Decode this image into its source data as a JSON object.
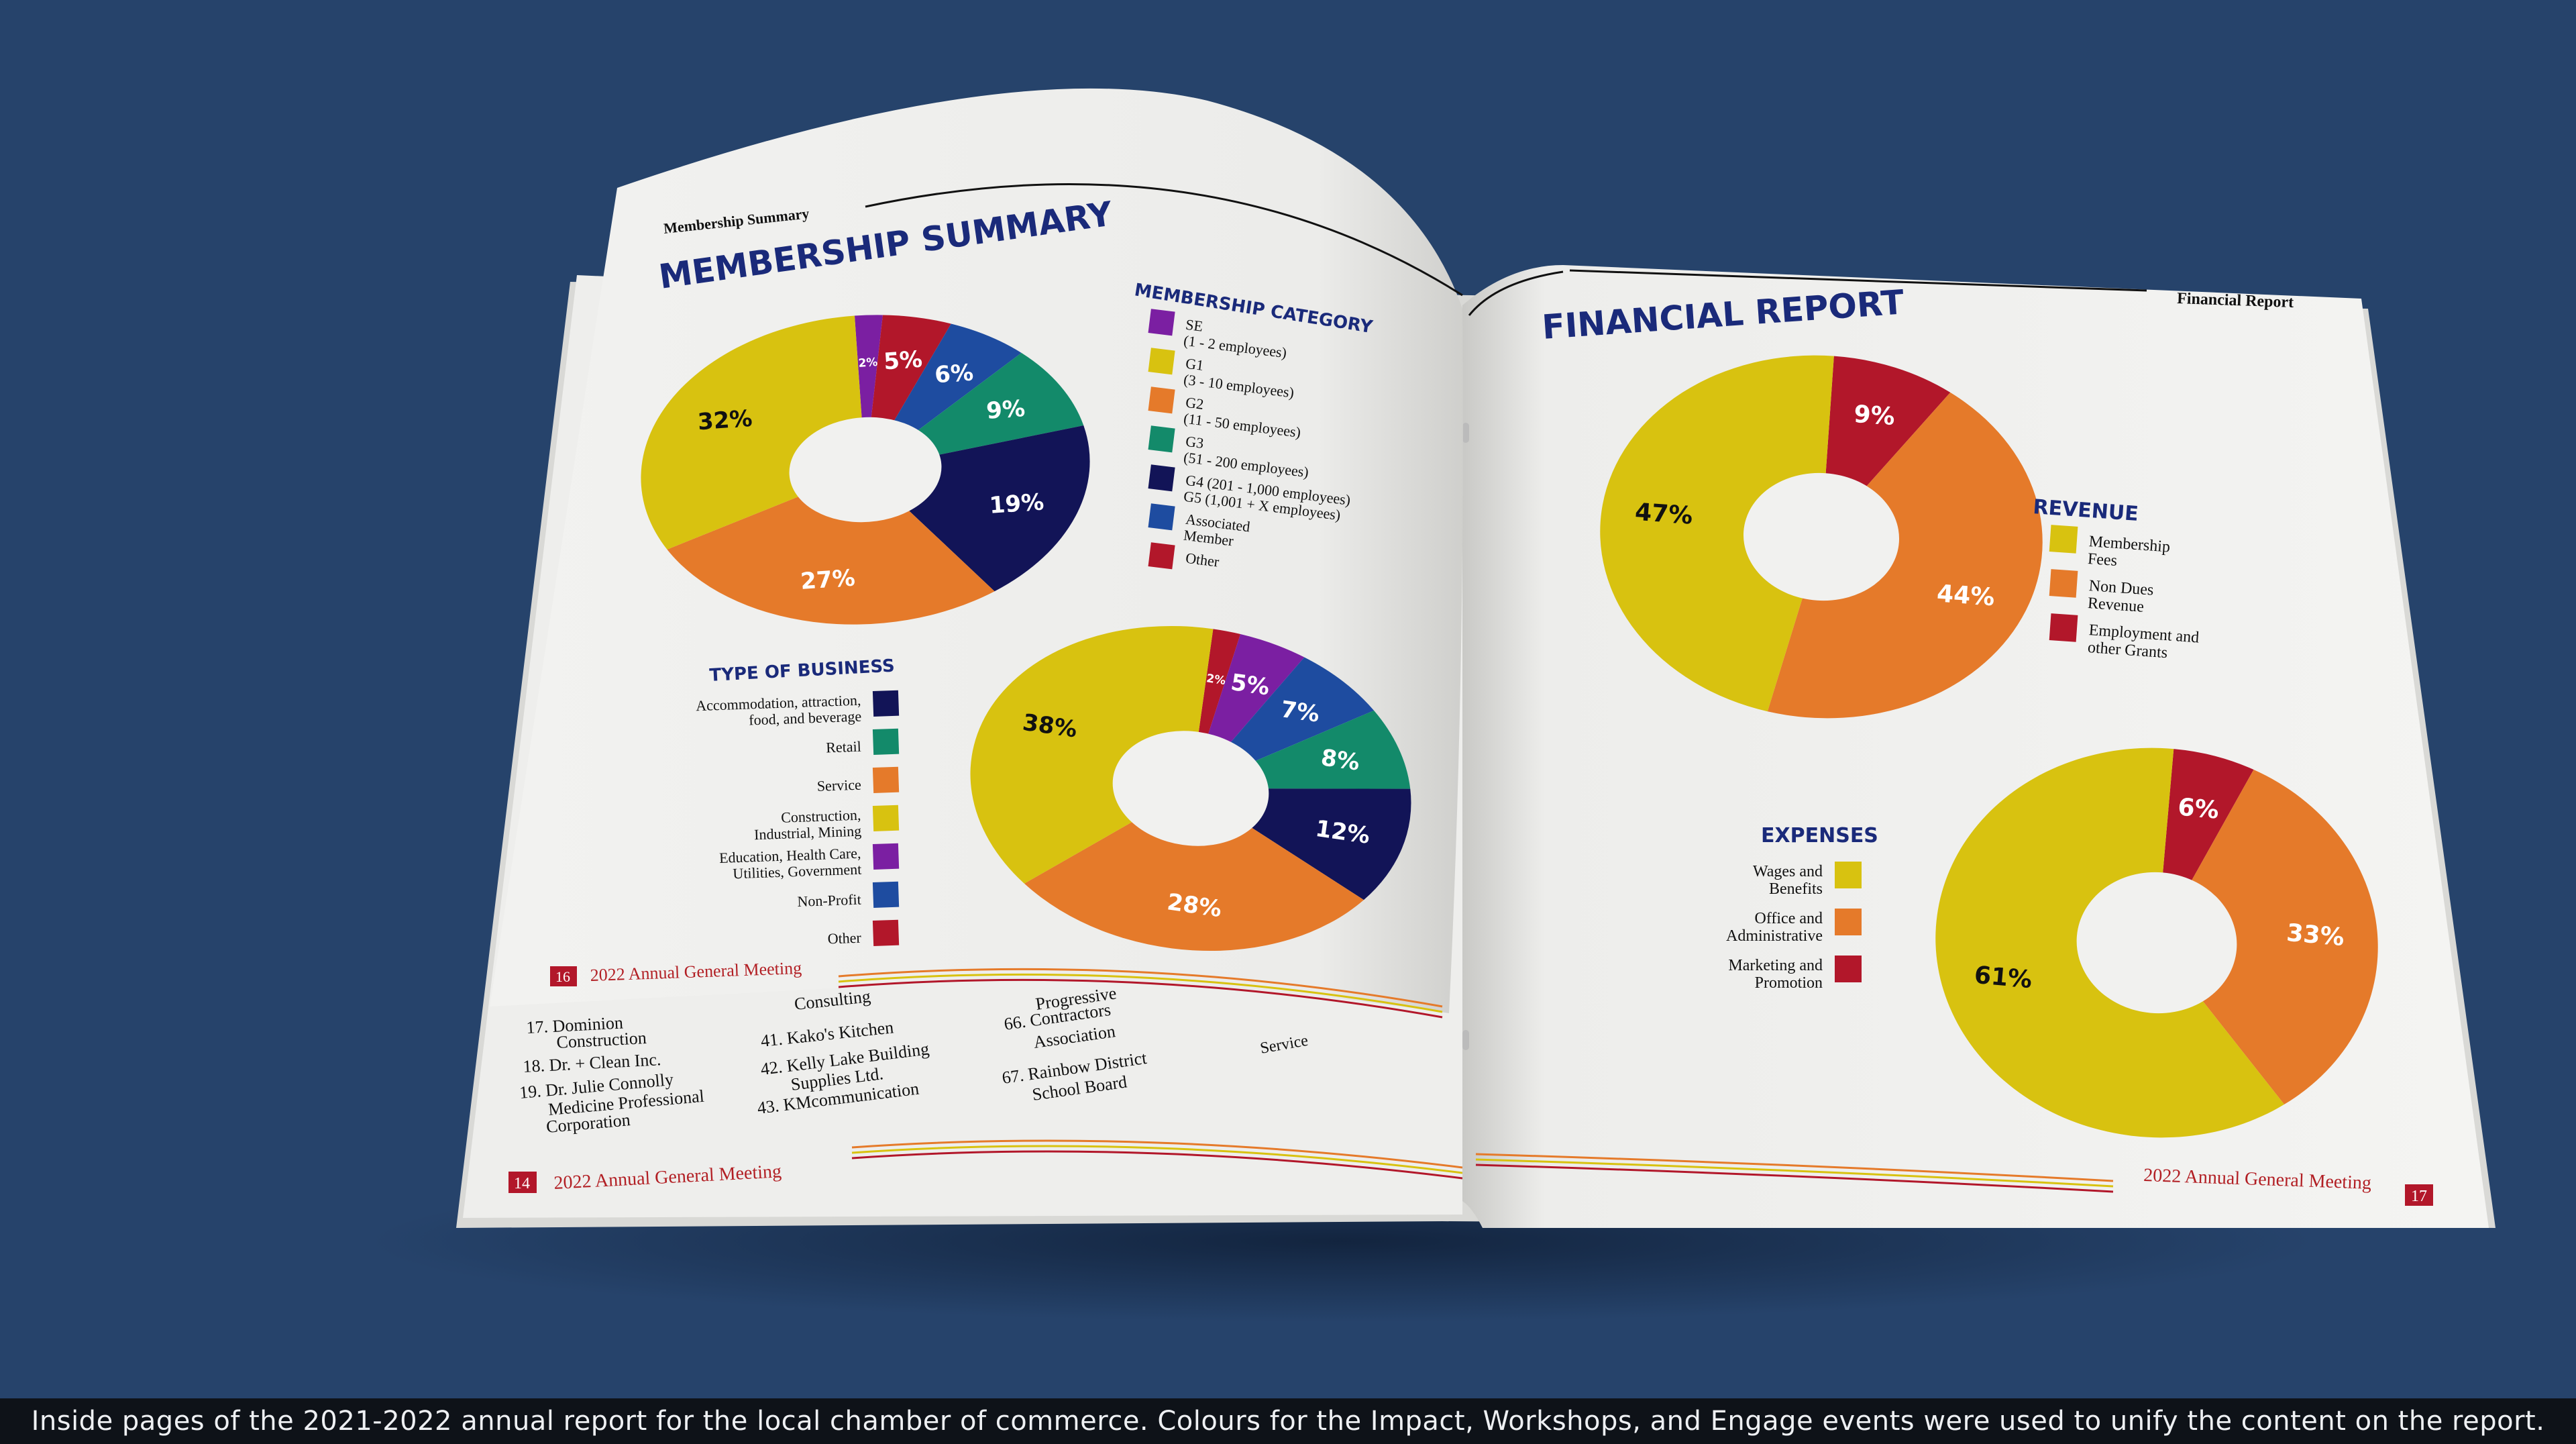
{
  "left_page": {
    "running_header": "Membership Summary",
    "title": "MEMBERSHIP SUMMARY",
    "membership_category": {
      "heading": "MEMBERSHIP CATEGORY",
      "items": [
        {
          "label": "SE",
          "sub": "(1 - 2 employees)",
          "color": "#7b1fa2"
        },
        {
          "label": "G1",
          "sub": "(3 - 10 employees)",
          "color": "#d8c210"
        },
        {
          "label": "G2",
          "sub": "(11 - 50 employees)",
          "color": "#e57a2a"
        },
        {
          "label": "G3",
          "sub": "(51 - 200 employees)",
          "color": "#138a6a"
        },
        {
          "label": "G4 (201 - 1,000 employees)",
          "sub": "G5 (1,001 + X employees)",
          "color": "#121457"
        },
        {
          "label": "Associated",
          "sub": "Member",
          "color": "#1e4ca0"
        },
        {
          "label": "Other",
          "sub": "",
          "color": "#b2172a"
        }
      ]
    },
    "type_of_business": {
      "heading": "TYPE OF BUSINESS",
      "items": [
        {
          "label": "Accommodation, attraction,",
          "sub": "food, and beverage",
          "color": "#121457"
        },
        {
          "label": "Retail",
          "sub": "",
          "color": "#138a6a"
        },
        {
          "label": "Service",
          "sub": "",
          "color": "#e57a2a"
        },
        {
          "label": "Construction,",
          "sub": "Industrial, Mining",
          "color": "#d8c210"
        },
        {
          "label": "Education, Health Care,",
          "sub": "Utilities, Government",
          "color": "#7b1fa2"
        },
        {
          "label": "Non-Profit",
          "sub": "",
          "color": "#1e4ca0"
        },
        {
          "label": "Other",
          "sub": "",
          "color": "#b2172a"
        }
      ]
    },
    "page_number": "16",
    "footer": "2022 Annual General Meeting"
  },
  "under_page": {
    "page_number": "14",
    "footer": "2022 Annual General Meeting",
    "list_col1": [
      "17. Dominion",
      "Construction",
      "18. Dr. + Clean Inc.",
      "19. Dr. Julie Connolly",
      "Medicine Professional",
      "Corporation"
    ],
    "list_col2": [
      "Consulting",
      "41. Kako's Kitchen",
      "42. Kelly Lake Building",
      "Supplies Ltd.",
      "43. KMcommunication"
    ],
    "list_col3": [
      "Progressive",
      "66. Contractors",
      "Association",
      "67. Rainbow District",
      "School Board"
    ],
    "list_col4": [
      "Service"
    ]
  },
  "right_page": {
    "running_header": "Financial Report",
    "title": "FINANCIAL REPORT",
    "revenue": {
      "heading": "REVENUE",
      "items": [
        {
          "label": "Membership",
          "sub": "Fees",
          "color": "#d8c210"
        },
        {
          "label": "Non Dues",
          "sub": "Revenue",
          "color": "#e57a2a"
        },
        {
          "label": "Employment and",
          "sub": "other Grants",
          "color": "#b2172a"
        }
      ]
    },
    "expenses": {
      "heading": "EXPENSES",
      "items": [
        {
          "label": "Wages and",
          "sub": "Benefits",
          "color": "#d8c210"
        },
        {
          "label": "Office and",
          "sub": "Administrative",
          "color": "#e57a2a"
        },
        {
          "label": "Marketing and",
          "sub": "Promotion",
          "color": "#b2172a"
        }
      ]
    },
    "page_number": "17",
    "footer": "2022 Annual General Meeting"
  },
  "chart_data": [
    {
      "type": "pie",
      "title": "MEMBERSHIP CATEGORY",
      "categories": [
        "SE",
        "G1",
        "G2",
        "G3",
        "G4/G5",
        "Associated Member",
        "Other"
      ],
      "order_clockwise": [
        "SE",
        "Other",
        "Associated Member",
        "G3",
        "G4/G5",
        "G2",
        "G1"
      ],
      "values": {
        "SE": 2,
        "Other": 5,
        "Associated Member": 6,
        "G3": 9,
        "G4/G5": 19,
        "G2": 27,
        "G1": 32
      },
      "labels": {
        "SE": "2%",
        "Other": "5%",
        "Associated Member": "6%",
        "G3": "9%",
        "G4/G5": "19%",
        "G2": "27%",
        "G1": "32%"
      }
    },
    {
      "type": "pie",
      "title": "TYPE OF BUSINESS",
      "order_clockwise": [
        "Other",
        "Education, Health Care, Utilities, Government",
        "Non-Profit",
        "Retail",
        "Accommodation, attraction, food, and beverage",
        "Service",
        "Construction, Industrial, Mining"
      ],
      "values": [
        2,
        5,
        7,
        8,
        12,
        28,
        38
      ],
      "labels": [
        "2%",
        "5%",
        "7%",
        "8%",
        "12%",
        "28%",
        "38%"
      ]
    },
    {
      "type": "pie",
      "title": "REVENUE",
      "order_clockwise": [
        "Employment and other Grants",
        "Non Dues Revenue",
        "Membership Fees"
      ],
      "values": [
        9,
        44,
        47
      ],
      "labels": [
        "9%",
        "44%",
        "47%"
      ]
    },
    {
      "type": "pie",
      "title": "EXPENSES",
      "order_clockwise": [
        "Marketing and Promotion",
        "Office and Administrative",
        "Wages and Benefits"
      ],
      "values": [
        6,
        33,
        61
      ],
      "labels": [
        "6%",
        "33%",
        "61%"
      ]
    }
  ],
  "caption": "Inside pages of the 2021-2022 annual report for the local chamber of commerce. Colours for the Impact, Workshops, and Engage events were used to unify the content on the report."
}
